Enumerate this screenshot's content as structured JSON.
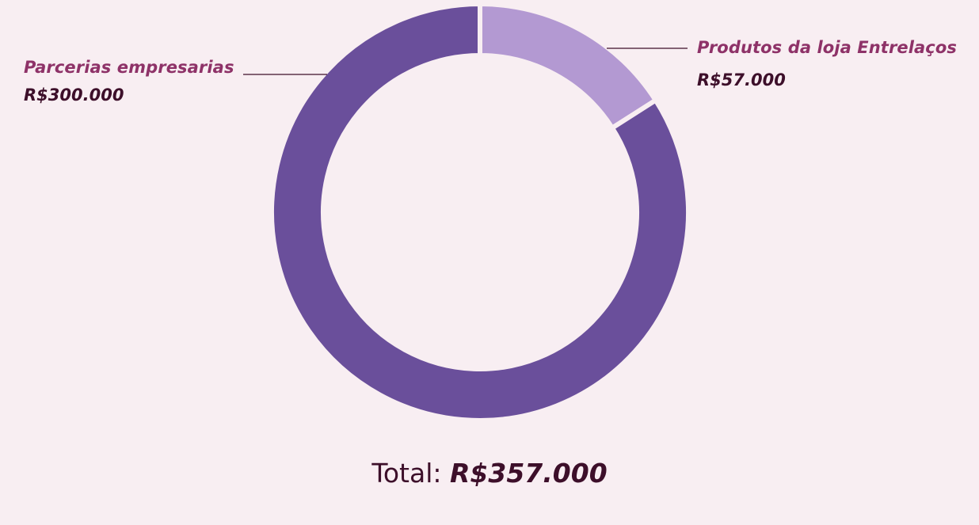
{
  "chart_data": {
    "type": "pie",
    "variant": "donut",
    "categories": [
      "Produtos da loja Entrelaços",
      "Parcerias empresarias"
    ],
    "values": [
      57000,
      300000
    ],
    "value_labels": [
      "R$57.000",
      "R$300.000"
    ],
    "colors": [
      "#b399d2",
      "#6a4f9b"
    ],
    "start_angle_deg": 0,
    "direction": "clockwise",
    "total_label": "Total: ",
    "total_value": "R$357.000",
    "label_color": "#8e3268",
    "value_color": "#3d0f2a",
    "background": "#f8eef2"
  }
}
